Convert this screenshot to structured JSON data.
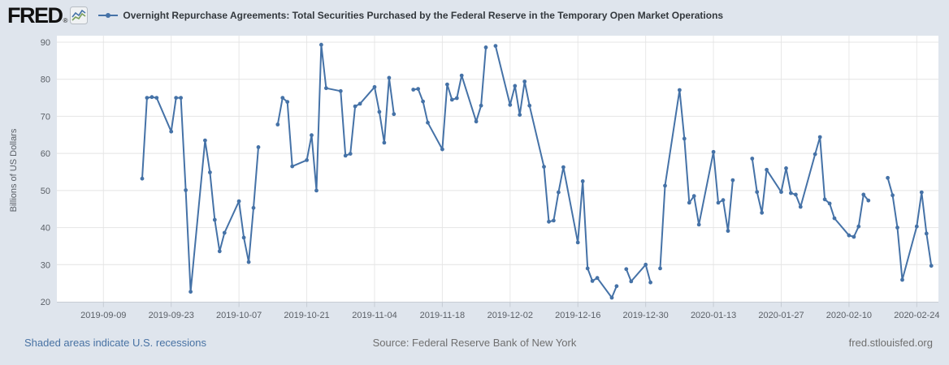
{
  "header": {
    "logo_text": "FRED",
    "logo_registered": "®"
  },
  "footer": {
    "recession_note": "Shaded areas indicate U.S. recessions",
    "source": "Source: Federal Reserve Bank of New York",
    "site": "fred.stlouisfed.org"
  },
  "colors": {
    "line": "#4572a7",
    "link": "#4872a3",
    "muted_text": "#6f6f6f",
    "grid": "#e4e4e4",
    "axis": "#c6ccd4",
    "background": "#dfe5ed",
    "plot_background": "#ffffff"
  },
  "chart_data": {
    "type": "line",
    "title": "Overnight Repurchase Agreements: Total Securities Purchased by the Federal Reserve in the Temporary Open Market Operations",
    "ylabel": "Billions of US Dollars",
    "xlabel": "",
    "ylim": [
      20,
      90
    ],
    "y_ticks": [
      20,
      30,
      40,
      50,
      60,
      70,
      80,
      90
    ],
    "x_ticks": [
      "2019-09-09",
      "2019-09-23",
      "2019-10-07",
      "2019-10-21",
      "2019-11-04",
      "2019-11-18",
      "2019-12-02",
      "2019-12-16",
      "2019-12-30",
      "2020-01-13",
      "2020-01-27",
      "2020-02-10",
      "2020-02-24"
    ],
    "grid": true,
    "legend_position": "top-left",
    "marker": "circle",
    "missing_dates": [
      "2019-10-14",
      "2019-11-11",
      "2019-11-28",
      "2019-12-25",
      "2020-01-01",
      "2020-01-20",
      "2020-02-17"
    ],
    "series": [
      {
        "name": "Overnight Repurchase Agreements: Total Securities Purchased by the Federal Reserve in the Temporary Open Market Operations",
        "points": [
          [
            "2019-09-17",
            53.2
          ],
          [
            "2019-09-18",
            75.0
          ],
          [
            "2019-09-19",
            75.2
          ],
          [
            "2019-09-20",
            75.0
          ],
          [
            "2019-09-23",
            65.9
          ],
          [
            "2019-09-24",
            75.0
          ],
          [
            "2019-09-25",
            75.0
          ],
          [
            "2019-09-26",
            50.1
          ],
          [
            "2019-09-27",
            22.7
          ],
          [
            "2019-09-30",
            63.5
          ],
          [
            "2019-10-01",
            54.9
          ],
          [
            "2019-10-02",
            42.1
          ],
          [
            "2019-10-03",
            33.6
          ],
          [
            "2019-10-04",
            38.6
          ],
          [
            "2019-10-07",
            47.1
          ],
          [
            "2019-10-08",
            37.3
          ],
          [
            "2019-10-09",
            30.7
          ],
          [
            "2019-10-10",
            45.3
          ],
          [
            "2019-10-11",
            61.7
          ],
          [
            "2019-10-15",
            67.8
          ],
          [
            "2019-10-16",
            75.0
          ],
          [
            "2019-10-17",
            73.9
          ],
          [
            "2019-10-18",
            56.5
          ],
          [
            "2019-10-21",
            58.2
          ],
          [
            "2019-10-22",
            64.9
          ],
          [
            "2019-10-23",
            50.0
          ],
          [
            "2019-10-24",
            89.3
          ],
          [
            "2019-10-25",
            77.6
          ],
          [
            "2019-10-28",
            76.8
          ],
          [
            "2019-10-29",
            59.4
          ],
          [
            "2019-10-30",
            59.9
          ],
          [
            "2019-10-31",
            72.7
          ],
          [
            "2019-11-01",
            73.4
          ],
          [
            "2019-11-04",
            77.9
          ],
          [
            "2019-11-05",
            71.2
          ],
          [
            "2019-11-06",
            62.9
          ],
          [
            "2019-11-07",
            80.4
          ],
          [
            "2019-11-08",
            70.6
          ],
          [
            "2019-11-12",
            77.2
          ],
          [
            "2019-11-13",
            77.4
          ],
          [
            "2019-11-14",
            74.0
          ],
          [
            "2019-11-15",
            68.3
          ],
          [
            "2019-11-18",
            61.1
          ],
          [
            "2019-11-19",
            78.6
          ],
          [
            "2019-11-20",
            74.5
          ],
          [
            "2019-11-21",
            74.9
          ],
          [
            "2019-11-22",
            81.0
          ],
          [
            "2019-11-25",
            68.6
          ],
          [
            "2019-11-26",
            72.9
          ],
          [
            "2019-11-27",
            88.6
          ],
          [
            "2019-11-29",
            89.0
          ],
          [
            "2019-12-02",
            73.1
          ],
          [
            "2019-12-03",
            78.2
          ],
          [
            "2019-12-04",
            70.4
          ],
          [
            "2019-12-05",
            79.4
          ],
          [
            "2019-12-06",
            72.9
          ],
          [
            "2019-12-09",
            56.4
          ],
          [
            "2019-12-10",
            41.6
          ],
          [
            "2019-12-11",
            41.9
          ],
          [
            "2019-12-12",
            49.5
          ],
          [
            "2019-12-13",
            56.3
          ],
          [
            "2019-12-16",
            36.0
          ],
          [
            "2019-12-17",
            52.5
          ],
          [
            "2019-12-18",
            29.0
          ],
          [
            "2019-12-19",
            25.6
          ],
          [
            "2019-12-20",
            26.4
          ],
          [
            "2019-12-23",
            21.1
          ],
          [
            "2019-12-24",
            24.2
          ],
          [
            "2019-12-26",
            28.8
          ],
          [
            "2019-12-27",
            25.5
          ],
          [
            "2019-12-30",
            30.0
          ],
          [
            "2019-12-31",
            25.2
          ],
          [
            "2020-01-02",
            29.0
          ],
          [
            "2020-01-03",
            51.3
          ],
          [
            "2020-01-06",
            77.1
          ],
          [
            "2020-01-07",
            64.0
          ],
          [
            "2020-01-08",
            46.7
          ],
          [
            "2020-01-09",
            48.5
          ],
          [
            "2020-01-10",
            40.8
          ],
          [
            "2020-01-13",
            60.4
          ],
          [
            "2020-01-14",
            46.7
          ],
          [
            "2020-01-15",
            47.4
          ],
          [
            "2020-01-16",
            39.1
          ],
          [
            "2020-01-17",
            52.8
          ],
          [
            "2020-01-21",
            58.6
          ],
          [
            "2020-01-22",
            49.6
          ],
          [
            "2020-01-23",
            44.0
          ],
          [
            "2020-01-24",
            55.6
          ],
          [
            "2020-01-27",
            49.6
          ],
          [
            "2020-01-28",
            56.0
          ],
          [
            "2020-01-29",
            49.3
          ],
          [
            "2020-01-30",
            48.9
          ],
          [
            "2020-01-31",
            45.6
          ],
          [
            "2020-02-03",
            59.8
          ],
          [
            "2020-02-04",
            64.4
          ],
          [
            "2020-02-05",
            47.6
          ],
          [
            "2020-02-06",
            46.5
          ],
          [
            "2020-02-07",
            42.5
          ],
          [
            "2020-02-10",
            37.9
          ],
          [
            "2020-02-11",
            37.5
          ],
          [
            "2020-02-12",
            40.3
          ],
          [
            "2020-02-13",
            48.9
          ],
          [
            "2020-02-14",
            47.3
          ],
          [
            "2020-02-18",
            53.4
          ],
          [
            "2020-02-19",
            48.7
          ],
          [
            "2020-02-20",
            40.0
          ],
          [
            "2020-02-21",
            25.9
          ],
          [
            "2020-02-24",
            40.3
          ],
          [
            "2020-02-25",
            49.5
          ],
          [
            "2020-02-26",
            38.4
          ],
          [
            "2020-02-27",
            29.7
          ]
        ]
      }
    ]
  }
}
